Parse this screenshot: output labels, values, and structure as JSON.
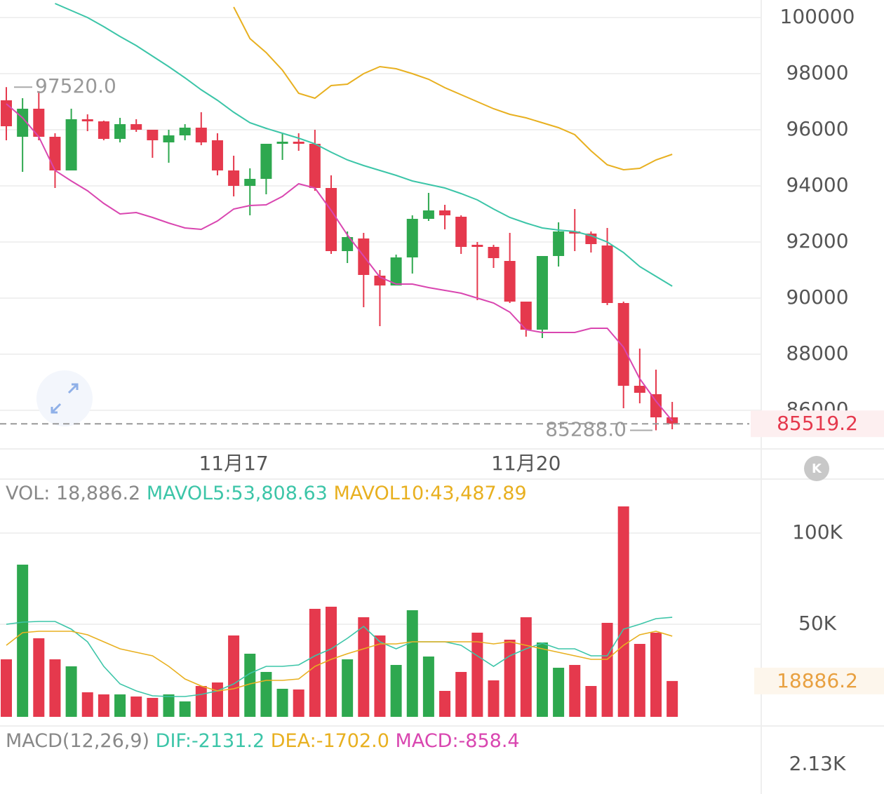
{
  "chart_data": [
    {
      "type": "candlestick",
      "up_color": "#2ea84f",
      "down_color": "#e5394d",
      "categories": [
        null,
        null,
        null,
        null,
        null,
        null,
        null,
        null,
        null,
        null,
        null,
        null,
        null,
        null,
        "11月17",
        null,
        null,
        null,
        null,
        null,
        null,
        null,
        null,
        null,
        null,
        null,
        null,
        null,
        null,
        null,
        null,
        null,
        "11月20",
        null,
        null,
        null,
        null,
        null,
        null,
        null,
        null,
        null
      ],
      "open": [
        97050,
        95750,
        96750,
        95750,
        94550,
        96375,
        96300,
        95675,
        96200,
        96000,
        95550,
        95800,
        96075,
        95625,
        94550,
        94000,
        94250,
        95500,
        95575,
        95500,
        93925,
        91675,
        92125,
        90800,
        90450,
        91450,
        92825,
        93125,
        92900,
        91900,
        91825,
        91325,
        89875,
        88875,
        91500,
        92375,
        92300,
        91875,
        89825,
        86875,
        86575,
        85750
      ],
      "high": [
        97520,
        97125,
        97375,
        95875,
        96750,
        96550,
        96325,
        96425,
        96375,
        96000,
        96000,
        96200,
        96625,
        95875,
        95075,
        94625,
        95500,
        95875,
        95875,
        96000,
        94375,
        92375,
        92325,
        91000,
        91550,
        92950,
        93750,
        93325,
        92950,
        92000,
        91900,
        92325,
        89875,
        91500,
        92700,
        93175,
        92375,
        92500,
        89875,
        88200,
        87450,
        86300
      ],
      "low": [
        95625,
        94500,
        95625,
        93925,
        94550,
        95950,
        95625,
        95550,
        95925,
        95000,
        94825,
        95625,
        95450,
        94375,
        93625,
        92950,
        93700,
        94925,
        95250,
        93825,
        91575,
        91250,
        89675,
        89000,
        90450,
        90875,
        92750,
        92450,
        91575,
        89925,
        91075,
        89825,
        88625,
        88575,
        91125,
        91675,
        91625,
        89750,
        86075,
        86250,
        85288,
        85325
      ],
      "close": [
        96125,
        96750,
        95750,
        94550,
        96375,
        96300,
        95675,
        96200,
        96000,
        95625,
        95800,
        96075,
        95550,
        94550,
        94000,
        94250,
        95500,
        95575,
        95500,
        93925,
        91675,
        92175,
        90825,
        90450,
        91450,
        92825,
        93125,
        92950,
        91825,
        91825,
        91425,
        89875,
        88875,
        91500,
        92375,
        92300,
        91925,
        89825,
        86875,
        86625,
        85750,
        85519.2
      ],
      "lines": [
        {
          "color": "#3cc5a8",
          "values": [
            null,
            null,
            null,
            100500,
            100250,
            100000,
            99675,
            99325,
            99000,
            98625,
            98250,
            97850,
            97425,
            97050,
            96625,
            96250,
            96050,
            95875,
            95700,
            95500,
            95200,
            94925,
            94725,
            94550,
            94375,
            94175,
            94050,
            93925,
            93725,
            93500,
            93175,
            92875,
            92675,
            92500,
            92425,
            92375,
            92225,
            92000,
            91625,
            91125,
            90775,
            90425
          ]
        },
        {
          "color": "#e8b020",
          "values": [
            null,
            null,
            null,
            null,
            null,
            null,
            null,
            null,
            null,
            null,
            null,
            null,
            null,
            null,
            100375,
            99250,
            98750,
            98125,
            97300,
            97125,
            97575,
            97625,
            98000,
            98250,
            98175,
            98000,
            97800,
            97500,
            97250,
            97000,
            96750,
            96550,
            96425,
            96250,
            96075,
            95825,
            95250,
            94750,
            94575,
            94625,
            94925,
            95125
          ]
        },
        {
          "color": "#d946b0",
          "values": [
            96925,
            96425,
            95750,
            94550,
            94175,
            93825,
            93375,
            93000,
            93050,
            92875,
            92675,
            92500,
            92450,
            92750,
            93175,
            93300,
            93325,
            93625,
            94075,
            93925,
            93125,
            92250,
            91500,
            90750,
            90500,
            90500,
            90375,
            90275,
            90175,
            90000,
            89825,
            89500,
            88875,
            88775,
            88775,
            88775,
            88925,
            88925,
            88250,
            87125,
            86325,
            85625
          ]
        }
      ],
      "ylim": [
        84625,
        100625
      ],
      "yticks": [
        86000,
        88000,
        90000,
        92000,
        94000,
        96000,
        98000,
        100000
      ],
      "grid": true,
      "high_marker": {
        "value": 97520,
        "label": "97520.0"
      },
      "low_marker": {
        "value": 85288,
        "label": "85288.0"
      },
      "last_price": {
        "value": 85519.2,
        "label": "85519.2"
      }
    },
    {
      "type": "bar",
      "up_color": "#2ea84f",
      "down_color": "#e5394d",
      "legend": [
        "VOL: 18,886.2",
        "MAVOL5:53,808.63",
        "MAVOL10:43,487.89"
      ],
      "values": [
        30770,
        82690,
        42310,
        30770,
        26920,
        12690,
        11540,
        11540,
        10380,
        9620,
        11540,
        7690,
        16150,
        18080,
        43850,
        33850,
        23850,
        14620,
        14230,
        58460,
        59620,
        30770,
        53850,
        43850,
        27690,
        57690,
        32310,
        13460,
        23850,
        45380,
        19230,
        41540,
        53850,
        40000,
        26150,
        27690,
        16150,
        50770,
        114620,
        39230,
        45380,
        18886.2
      ],
      "lines": [
        {
          "color": "#3cc5a8",
          "values": [
            50000,
            51150,
            51540,
            51540,
            47310,
            40380,
            26920,
            17310,
            13460,
            10770,
            10380,
            10380,
            11540,
            13460,
            17310,
            23080,
            26920,
            26920,
            27690,
            32690,
            36540,
            42310,
            48850,
            40380,
            36540,
            40380,
            40380,
            40380,
            38460,
            32690,
            26920,
            32690,
            36540,
            39620,
            36540,
            36540,
            32690,
            32690,
            47310,
            50000,
            53080,
            53808.63
          ]
        },
        {
          "color": "#e8b020",
          "values": [
            38460,
            45380,
            46150,
            46150,
            46150,
            44230,
            40380,
            36540,
            34620,
            32690,
            26920,
            20000,
            16150,
            13460,
            14620,
            17310,
            19230,
            19230,
            20000,
            26920,
            30770,
            33850,
            36540,
            39230,
            39230,
            40380,
            40380,
            40380,
            40380,
            40380,
            39230,
            40380,
            38460,
            36540,
            34620,
            32690,
            30770,
            30770,
            38460,
            44230,
            46150,
            43487.89
          ]
        }
      ],
      "ylim": [
        0,
        115385
      ],
      "yticks": [
        {
          "value": 50000,
          "label": "50K"
        },
        {
          "value": 100000,
          "label": "100K"
        }
      ],
      "last_volume": {
        "value": 18886.2,
        "label": "18886.2"
      }
    }
  ],
  "macd": {
    "legend": [
      "MACD(12,26,9)",
      "DIF:-2131.2",
      "DEA:-1702.0",
      "MACD:-858.4"
    ],
    "tick_label": "2.13K"
  }
}
